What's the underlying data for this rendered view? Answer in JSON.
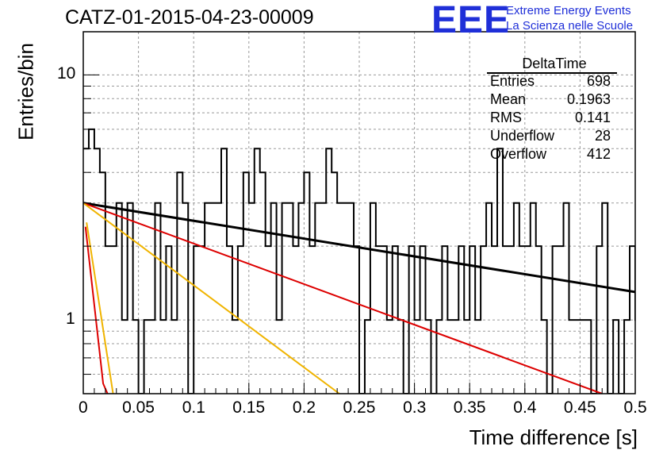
{
  "title": "CATZ-01-2015-04-23-00009",
  "logo": {
    "letters": "EEE",
    "line1": "Extreme Energy Events",
    "line2": "La Scienza nelle Scuole"
  },
  "stats": {
    "name": "DeltaTime",
    "rows": [
      {
        "key": "Entries",
        "value": "698"
      },
      {
        "key": "Mean",
        "value": "0.1963"
      },
      {
        "key": "RMS",
        "value": "0.141"
      },
      {
        "key": "Underflow",
        "value": "28"
      },
      {
        "key": "Overflow",
        "value": "412"
      }
    ]
  },
  "chart_data": {
    "type": "line",
    "title": "CATZ-01-2015-04-23-00009",
    "xlabel": "Time difference [s]",
    "ylabel": "Entries/bin",
    "xlim": [
      0,
      0.5
    ],
    "ylim": [
      0.5,
      15
    ],
    "yscale": "log",
    "grid": true,
    "x_ticks": [
      "0",
      "0.05",
      "0.1",
      "0.15",
      "0.2",
      "0.25",
      "0.3",
      "0.35",
      "0.4",
      "0.45",
      "0.5"
    ],
    "y_ticks": [
      "1",
      "10"
    ],
    "histogram": {
      "bin_width": 0.005,
      "counts": [
        5,
        6,
        5,
        4,
        2,
        2,
        3,
        1,
        3,
        1,
        0,
        1,
        1,
        3,
        1,
        2,
        1,
        4,
        3,
        0,
        2,
        2,
        3,
        3,
        3,
        5,
        2,
        1,
        2,
        4,
        3,
        5,
        4,
        2,
        3,
        1,
        3,
        3,
        2,
        3,
        4,
        2,
        3,
        3,
        5,
        4,
        3,
        3,
        3,
        2,
        0,
        1,
        3,
        2,
        2,
        1,
        2,
        1,
        0,
        2,
        1,
        2,
        1,
        0,
        1,
        2,
        1,
        1,
        2,
        1,
        2,
        1,
        2,
        3,
        2,
        5,
        2,
        2,
        3,
        2,
        2,
        3,
        2,
        1,
        0,
        2,
        2,
        3,
        1,
        1,
        1,
        1,
        0,
        2,
        3,
        0,
        1,
        0,
        1,
        2,
        1,
        3,
        2,
        1,
        1,
        2,
        0,
        1,
        2,
        2,
        0,
        3,
        1,
        0,
        2,
        1,
        3,
        2,
        1,
        1,
        0,
        2,
        2,
        2,
        3,
        1,
        2,
        0,
        2,
        2,
        2,
        3,
        2,
        0,
        1,
        2,
        0,
        2,
        3,
        2,
        1,
        2,
        2,
        1,
        2,
        2,
        0,
        1,
        3,
        2,
        3,
        2,
        0,
        2,
        1,
        3,
        1,
        1,
        1,
        3,
        1,
        1,
        1,
        2,
        3,
        0,
        1,
        2,
        1,
        3,
        1,
        2,
        0,
        2,
        1,
        2,
        2,
        2,
        2,
        2,
        1,
        0,
        1,
        1,
        3,
        2,
        0,
        1,
        1,
        3,
        1,
        2,
        0,
        2,
        0,
        2,
        2,
        2,
        0,
        1,
        2,
        2,
        1,
        2,
        2,
        2,
        0,
        3,
        1,
        1,
        2,
        3,
        2,
        0,
        2,
        2,
        1,
        3,
        2,
        3,
        0,
        3,
        0,
        1,
        2,
        3,
        2,
        3,
        2,
        1,
        1,
        1,
        2,
        2,
        0,
        1,
        2,
        1,
        1,
        3,
        2,
        1,
        1,
        3,
        0,
        1,
        1,
        3,
        2,
        1,
        1,
        1,
        0,
        2,
        2,
        3,
        1,
        1,
        1,
        3,
        2,
        2,
        1,
        2,
        0,
        1,
        2,
        3,
        1,
        2,
        1,
        1,
        1,
        3,
        2,
        1,
        2,
        2,
        3,
        2,
        3,
        1,
        2,
        2,
        2,
        1,
        3,
        3,
        2,
        2,
        2,
        1,
        1,
        2,
        3,
        2,
        2,
        2,
        2,
        3,
        1,
        1,
        1,
        2,
        2,
        3,
        1,
        1,
        2,
        2,
        2,
        3,
        2,
        2,
        2,
        2,
        3,
        2,
        2,
        3,
        2,
        1,
        1,
        1,
        3,
        2
      ]
    },
    "series": [
      {
        "color": "#000000",
        "x": [
          0,
          0.5
        ],
        "y": [
          3.0,
          1.3
        ]
      },
      {
        "color": "#dd0000",
        "x": [
          0,
          0.47
        ],
        "y": [
          3.0,
          0.5
        ]
      },
      {
        "color": "#f0b400",
        "x": [
          0,
          0.232
        ],
        "y": [
          3.0,
          0.5
        ]
      },
      {
        "color": "#f0b400",
        "x": [
          0.003,
          0.027
        ],
        "y": [
          2.5,
          0.5
        ]
      },
      {
        "color": "#dd0000",
        "x": [
          0.002,
          0.018,
          0.022
        ],
        "y": [
          2.4,
          0.55,
          0.5
        ]
      }
    ]
  }
}
